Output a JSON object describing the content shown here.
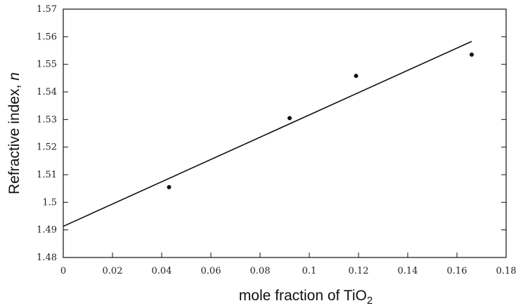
{
  "chart_data": {
    "type": "scatter",
    "xlabel": "mole fraction of TiO",
    "xlabel_subscript": "2",
    "ylabel": "Refractive index, ",
    "ylabel_italic": "n",
    "xlim": [
      0,
      0.18
    ],
    "ylim": [
      1.48,
      1.57
    ],
    "xticks": [
      "0",
      "0.02",
      "0.04",
      "0.06",
      "0.08",
      "0.1",
      "0.12",
      "0.14",
      "0.16",
      "0.18"
    ],
    "yticks": [
      "1.48",
      "1.49",
      "1.5",
      "1.51",
      "1.52",
      "1.53",
      "1.54",
      "1.55",
      "1.56",
      "1.57"
    ],
    "grid": false,
    "points": [
      {
        "x": 0.043,
        "y": 1.5055
      },
      {
        "x": 0.092,
        "y": 1.5305
      },
      {
        "x": 0.119,
        "y": 1.5458
      },
      {
        "x": 0.166,
        "y": 1.5535
      }
    ],
    "fit_line": {
      "x": [
        0,
        0.166
      ],
      "y": [
        1.4913,
        1.5583
      ]
    }
  }
}
